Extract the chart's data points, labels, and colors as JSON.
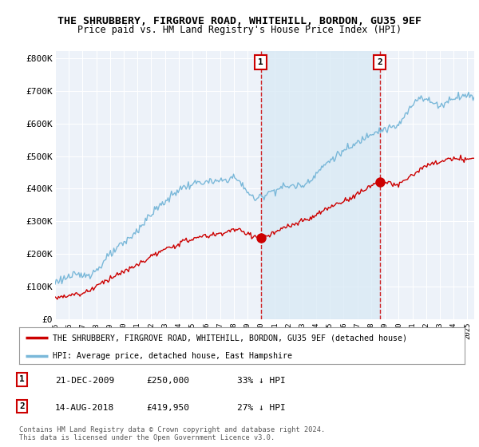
{
  "title": "THE SHRUBBERY, FIRGROVE ROAD, WHITEHILL, BORDON, GU35 9EF",
  "subtitle": "Price paid vs. HM Land Registry's House Price Index (HPI)",
  "ylabel_ticks": [
    "£0",
    "£100K",
    "£200K",
    "£300K",
    "£400K",
    "£500K",
    "£600K",
    "£700K",
    "£800K"
  ],
  "ytick_values": [
    0,
    100000,
    200000,
    300000,
    400000,
    500000,
    600000,
    700000,
    800000
  ],
  "ylim": [
    0,
    820000
  ],
  "xlim_start": 1995.0,
  "xlim_end": 2025.5,
  "marker1_x": 2009.97,
  "marker1_y": 250000,
  "marker2_x": 2018.62,
  "marker2_y": 419950,
  "vline1_x": 2009.97,
  "vline2_x": 2018.62,
  "hpi_color": "#7ab8d9",
  "hpi_fill_color": "#daeaf5",
  "price_color": "#cc0000",
  "background_color": "#edf2f9",
  "grid_color": "#ffffff",
  "legend_label_price": "THE SHRUBBERY, FIRGROVE ROAD, WHITEHILL, BORDON, GU35 9EF (detached house)",
  "legend_label_hpi": "HPI: Average price, detached house, East Hampshire",
  "footer": "Contains HM Land Registry data © Crown copyright and database right 2024.\nThis data is licensed under the Open Government Licence v3.0.",
  "title_fontsize": 9.5,
  "subtitle_fontsize": 8.5
}
